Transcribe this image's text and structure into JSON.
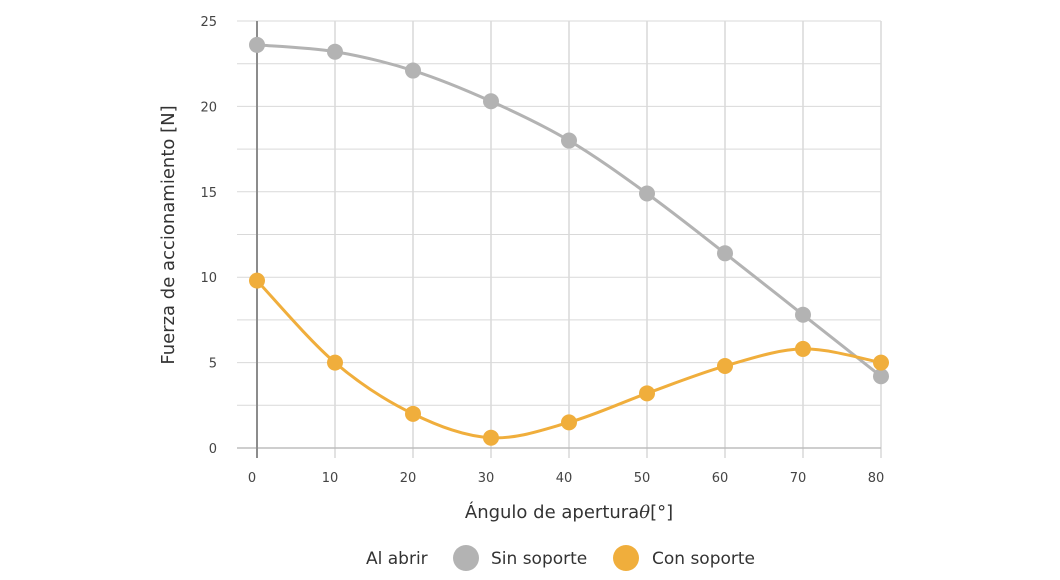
{
  "chart_data": {
    "type": "line",
    "title": "",
    "xlabel": "Ángulo de apertura",
    "xlabel_symbol": "θ",
    "xlabel_unit": "[°]",
    "ylabel": "Fuerza de accionamiento [N]",
    "x": [
      0,
      10,
      20,
      30,
      40,
      50,
      60,
      70,
      80
    ],
    "x_ticks": [
      "0",
      "10",
      "20",
      "30",
      "40",
      "50",
      "60",
      "70",
      "80"
    ],
    "y_ticks": [
      "0",
      "5",
      "10",
      "15",
      "20",
      "25"
    ],
    "xlim": [
      0,
      80
    ],
    "ylim": [
      0,
      25
    ],
    "grid": true,
    "legend_title": "Al abrir",
    "legend_position": "bottom",
    "series": [
      {
        "name": "Sin soporte",
        "color": "#b3b3b3",
        "values": [
          23.6,
          23.2,
          22.1,
          20.3,
          18.0,
          14.9,
          11.4,
          7.8,
          4.2
        ]
      },
      {
        "name": "Con soporte",
        "color": "#f0ae3c",
        "values": [
          9.8,
          5.0,
          2.0,
          0.6,
          1.5,
          3.2,
          4.8,
          5.8,
          5.0
        ]
      }
    ]
  }
}
